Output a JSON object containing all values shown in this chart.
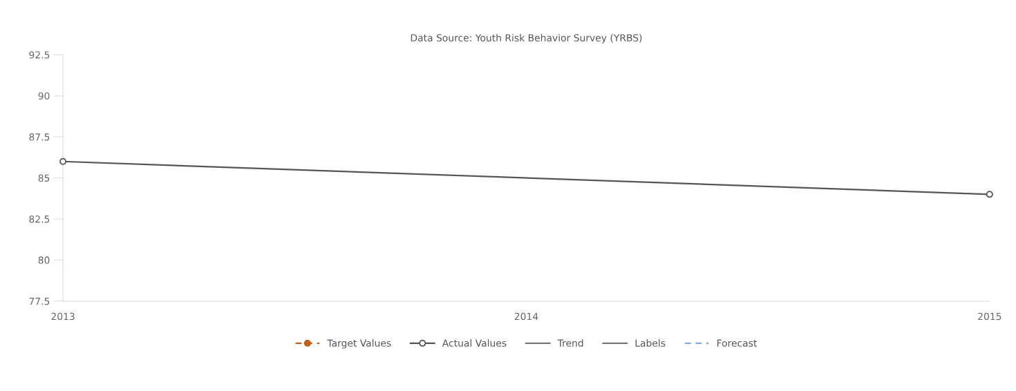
{
  "chart_data": {
    "type": "line",
    "title": "Data Source: Youth Risk Behavior Survey (YRBS)",
    "categories": [
      "2013",
      "2014",
      "2015"
    ],
    "ylim": [
      77.5,
      92.5
    ],
    "yticks": [
      77.5,
      80,
      82.5,
      85,
      87.5,
      90,
      92.5
    ],
    "grid": false,
    "legend": "bottom",
    "series": [
      {
        "name": "Target Values",
        "color": "#c0601a",
        "values": [
          null,
          null,
          null
        ],
        "marker": "circle",
        "line_style": "dashed"
      },
      {
        "name": "Actual Values",
        "color": "#555555",
        "values": [
          86,
          null,
          84
        ],
        "marker": "circle",
        "line_style": "solid"
      },
      {
        "name": "Trend",
        "color": "#777777",
        "values": [
          null,
          null,
          null
        ],
        "marker": "none",
        "line_style": "solid"
      },
      {
        "name": "Labels",
        "color": "#777777",
        "values": [
          null,
          null,
          null
        ],
        "marker": "none",
        "line_style": "solid"
      },
      {
        "name": "Forecast",
        "color": "#7aaee0",
        "values": [
          null,
          null,
          null
        ],
        "marker": "none",
        "line_style": "dashed"
      }
    ]
  }
}
